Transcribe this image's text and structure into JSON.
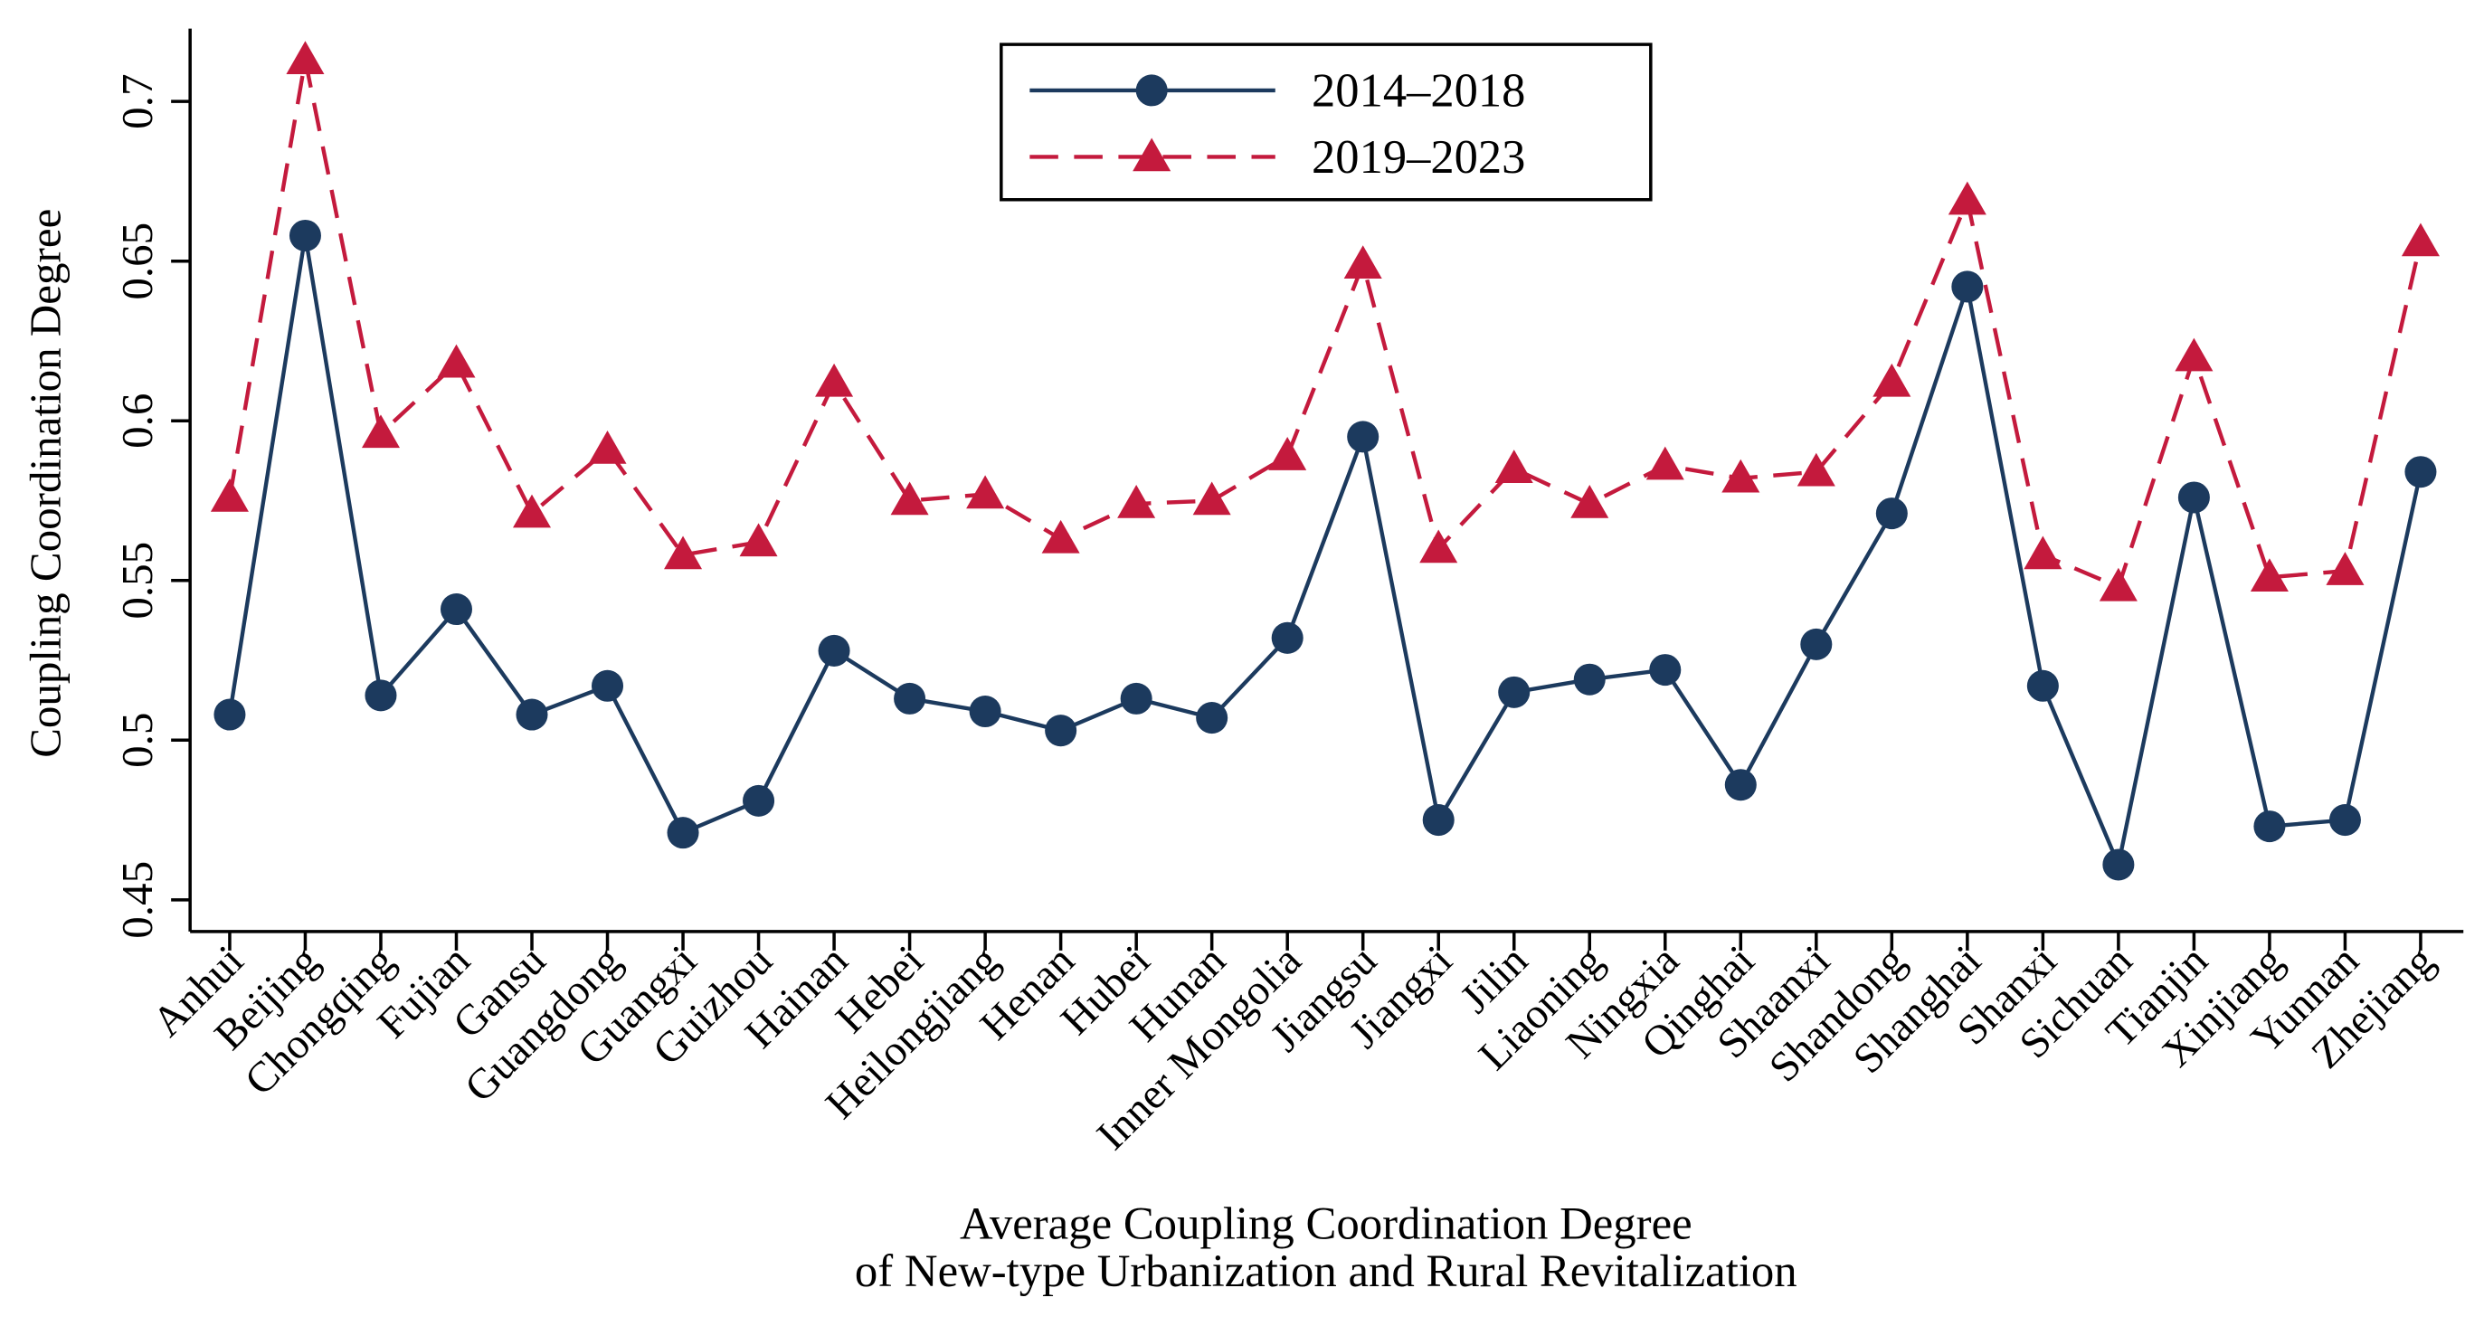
{
  "chart_data": {
    "type": "line",
    "title": "",
    "xlabel_lines": [
      "Average Coupling Coordination Degree",
      "of New-type Urbanization and Rural Revitalization"
    ],
    "ylabel": "Coupling Coordination Degree",
    "ylim": [
      0.45,
      0.7
    ],
    "yticks": [
      0.45,
      0.5,
      0.55,
      0.6,
      0.65,
      0.7
    ],
    "ytick_labels": [
      "0.45",
      "0.5",
      "0.55",
      "0.6",
      "0.65",
      "0.7"
    ],
    "grid": false,
    "legend_position": "top-center",
    "categories": [
      "Anhui",
      "Beijing",
      "Chongqing",
      "Fujian",
      "Gansu",
      "Guangdong",
      "Guangxi",
      "Guizhou",
      "Hainan",
      "Hebei",
      "Heilongjiang",
      "Henan",
      "Hubei",
      "Hunan",
      "Inner Mongolia",
      "Jiangsu",
      "Jiangxi",
      "Jilin",
      "Liaoning",
      "Ningxia",
      "Qinghai",
      "Shaanxi",
      "Shandong",
      "Shanghai",
      "Shanxi",
      "Sichuan",
      "Tianjin",
      "Xinjiang",
      "Yunnan",
      "Zhejiang"
    ],
    "series": [
      {
        "name": "2014–2018",
        "color": "#1c3a5e",
        "marker": "circle",
        "dash": "solid",
        "values": [
          0.508,
          0.658,
          0.514,
          0.541,
          0.508,
          0.517,
          0.471,
          0.481,
          0.528,
          0.513,
          0.509,
          0.503,
          0.513,
          0.507,
          0.532,
          0.595,
          0.475,
          0.515,
          0.519,
          0.522,
          0.486,
          0.53,
          0.571,
          0.642,
          0.517,
          0.461,
          0.576,
          0.473,
          0.475,
          0.584
        ]
      },
      {
        "name": "2019–2023",
        "color": "#c41a3d",
        "marker": "triangle",
        "dash": "dashed",
        "values": [
          0.576,
          0.713,
          0.596,
          0.618,
          0.571,
          0.591,
          0.558,
          0.562,
          0.612,
          0.575,
          0.577,
          0.563,
          0.574,
          0.575,
          0.589,
          0.649,
          0.56,
          0.585,
          0.574,
          0.586,
          0.582,
          0.584,
          0.612,
          0.669,
          0.558,
          0.548,
          0.62,
          0.551,
          0.553,
          0.656
        ]
      }
    ]
  }
}
